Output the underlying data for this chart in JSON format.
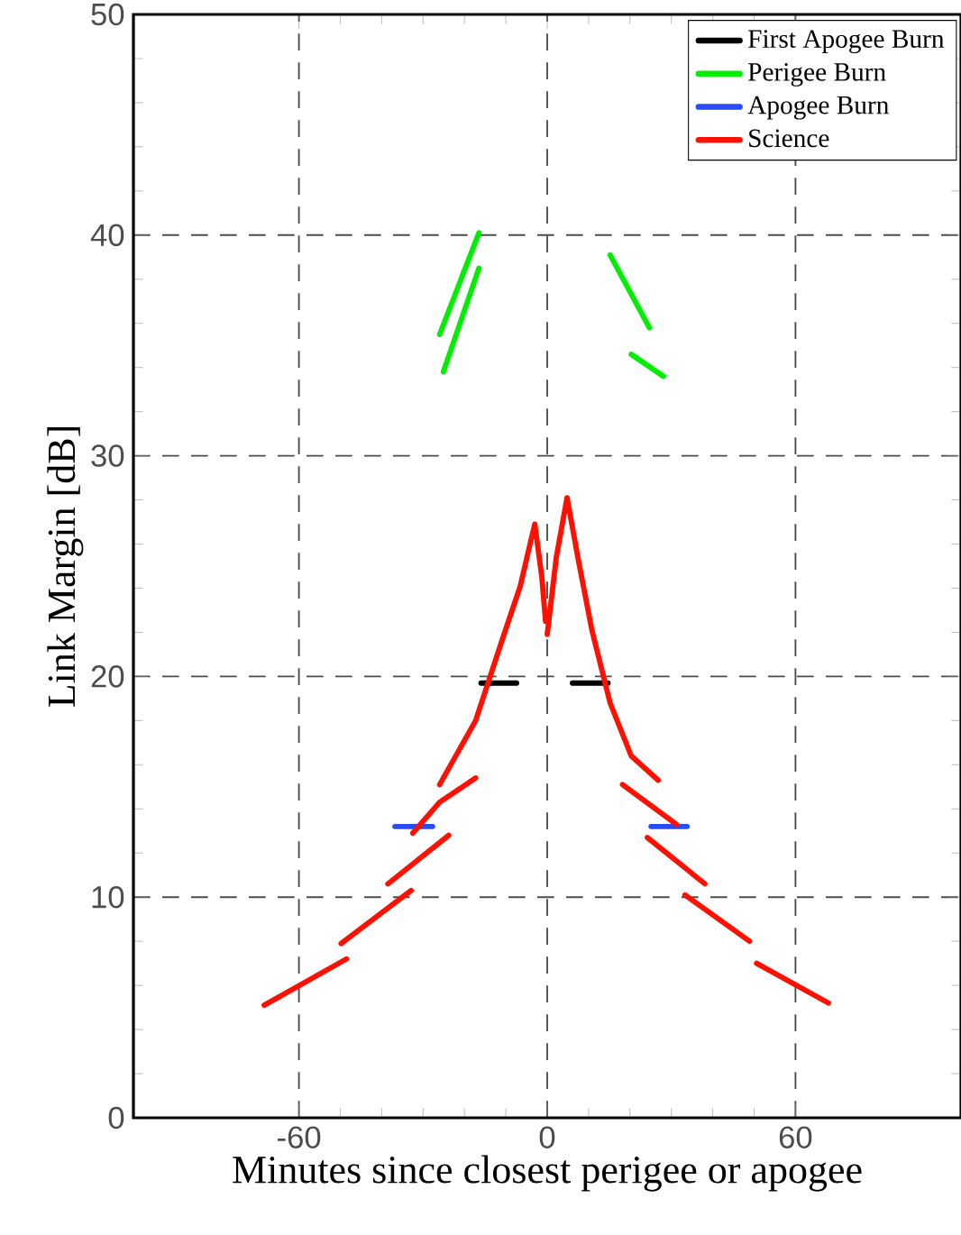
{
  "chart_data": {
    "type": "line",
    "xlabel": "Minutes since closest perigee or apogee",
    "ylabel": "Link Margin [dB]",
    "xlim": [
      -100,
      100
    ],
    "ylim": [
      0,
      50
    ],
    "xticks": [
      -60,
      0,
      60
    ],
    "yticks": [
      0,
      10,
      20,
      30,
      40,
      50
    ],
    "grid": true,
    "legend": "top right",
    "line_style": "solid",
    "series": [
      {
        "name": "First Apogee Burn",
        "color": "#000000",
        "x": [
          -16,
          -7.4,
          null,
          6.1,
          14.7
        ],
        "values": [
          19.7,
          19.7,
          null,
          19.7,
          19.7
        ]
      },
      {
        "name": "Perigee Burn",
        "color": "#00ee00",
        "x": [
          -26,
          -16.5,
          null,
          -25.1,
          -16.5,
          null,
          15.2,
          24.7,
          null,
          20.3,
          28.1
        ],
        "values": [
          35.5,
          40.1,
          null,
          33.8,
          38.5,
          null,
          39.1,
          35.8,
          null,
          34.6,
          33.6
        ]
      },
      {
        "name": "Apogee Burn",
        "color": "#2a4cf5",
        "x": [
          -36.8,
          -27.7,
          null,
          25.1,
          33.8
        ],
        "values": [
          13.2,
          13.2,
          null,
          13.2,
          13.2
        ]
      },
      {
        "name": "Science",
        "color": "#ff1000",
        "x": [
          -68.4,
          -48.5,
          null,
          -49.8,
          -32.9,
          null,
          -38.5,
          -23.8,
          null,
          -32.5,
          -26,
          -17.3,
          null,
          -26,
          -17.3,
          -10.8,
          -6.5,
          -3.9,
          -3.0,
          -1.3,
          -0.4,
          null,
          0,
          2.2,
          4.8,
          7.4,
          10.8,
          15.2,
          20.3,
          26.8,
          null,
          18.2,
          31.2,
          null,
          24.2,
          38.1,
          null,
          33.3,
          48.9,
          null,
          50.6,
          68.0
        ],
        "values": [
          5.1,
          7.2,
          null,
          7.9,
          10.3,
          null,
          10.6,
          12.8,
          null,
          12.9,
          14.3,
          15.4,
          null,
          15.1,
          18.0,
          21.7,
          24.1,
          26.2,
          26.9,
          24.5,
          22.5,
          null,
          21.9,
          25.4,
          28.1,
          25.4,
          22.1,
          18.8,
          16.4,
          15.3,
          null,
          15.1,
          13.3,
          null,
          12.7,
          10.6,
          null,
          10.1,
          8.0,
          null,
          7.0,
          5.2
        ]
      }
    ]
  }
}
